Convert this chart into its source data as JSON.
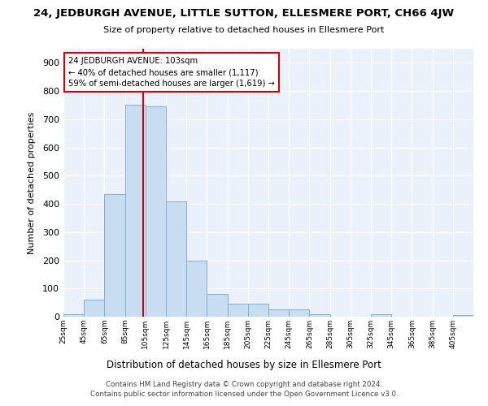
{
  "title": "24, JEDBURGH AVENUE, LITTLE SUTTON, ELLESMERE PORT, CH66 4JW",
  "subtitle": "Size of property relative to detached houses in Ellesmere Port",
  "xlabel": "Distribution of detached houses by size in Ellesmere Port",
  "ylabel": "Number of detached properties",
  "bar_color": "#c8ddf0",
  "bar_edge_color": "#7aadd4",
  "background_color": "#eaf1fb",
  "grid_color": "#ffffff",
  "property_size": 103,
  "annotation_line_color": "#cc0000",
  "annotation_box_color": "#cc0000",
  "annotation_text": "24 JEDBURGH AVENUE: 103sqm\n← 40% of detached houses are smaller (1,117)\n59% of semi-detached houses are larger (1,619) →",
  "bin_edges": [
    25,
    45,
    65,
    85,
    105,
    125,
    145,
    165,
    185,
    205,
    225,
    245,
    265,
    285,
    305,
    325,
    345,
    365,
    385,
    405,
    425
  ],
  "bar_heights": [
    10,
    60,
    435,
    750,
    745,
    410,
    200,
    80,
    45,
    45,
    25,
    25,
    8,
    0,
    0,
    8,
    0,
    0,
    0,
    5
  ],
  "ylim": [
    0,
    950
  ],
  "yticks": [
    0,
    100,
    200,
    300,
    400,
    500,
    600,
    700,
    800,
    900
  ],
  "footer_text": "Contains HM Land Registry data © Crown copyright and database right 2024.\nContains public sector information licensed under the Open Government Licence v3.0.",
  "figsize": [
    6.0,
    5.0
  ],
  "dpi": 100
}
